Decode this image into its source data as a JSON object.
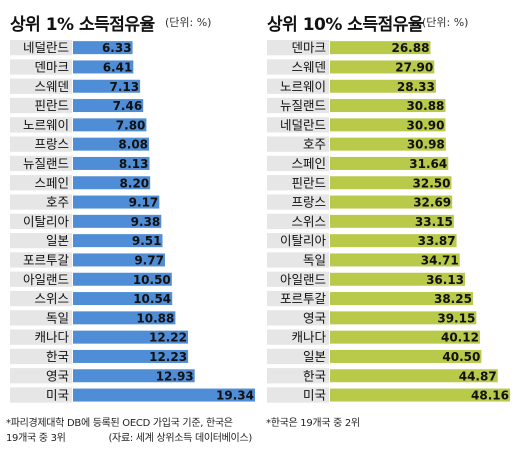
{
  "chart_data": [
    {
      "type": "bar",
      "orientation": "horizontal",
      "title": "상위 1% 소득점유율",
      "unit_label": "(단위: %)",
      "categories": [
        "네덜란드",
        "덴마크",
        "스웨덴",
        "핀란드",
        "노르웨이",
        "프랑스",
        "뉴질랜드",
        "스페인",
        "호주",
        "이탈리아",
        "일본",
        "포르투갈",
        "아일랜드",
        "스위스",
        "독일",
        "캐나다",
        "한국",
        "영국",
        "미국"
      ],
      "values": [
        6.33,
        6.41,
        7.13,
        7.46,
        7.8,
        8.08,
        8.13,
        8.2,
        9.17,
        9.38,
        9.51,
        9.77,
        10.5,
        10.54,
        10.88,
        12.22,
        12.23,
        12.93,
        19.34
      ],
      "value_labels": [
        "6.33",
        "6.41",
        "7.13",
        "7.46",
        "7.80",
        "8.08",
        "8.13",
        "8.20",
        "9.17",
        "9.38",
        "9.51",
        "9.77",
        "10.50",
        "10.54",
        "10.88",
        "12.22",
        "12.23",
        "12.93",
        "19.34"
      ],
      "bar_color": "#4f8ed6",
      "xlim": [
        0,
        19.34
      ]
    },
    {
      "type": "bar",
      "orientation": "horizontal",
      "title": "상위 10% 소득점유율",
      "unit_label": "(단위: %)",
      "categories": [
        "덴마크",
        "스웨덴",
        "노르웨이",
        "뉴질랜드",
        "네덜란드",
        "호주",
        "스페인",
        "핀란드",
        "프랑스",
        "스위스",
        "이탈리아",
        "독일",
        "아일랜드",
        "포르투갈",
        "영국",
        "캐나다",
        "일본",
        "한국",
        "미국"
      ],
      "values": [
        26.88,
        27.9,
        28.33,
        30.88,
        30.9,
        30.98,
        31.64,
        32.5,
        32.69,
        33.15,
        33.87,
        34.71,
        36.13,
        38.25,
        39.15,
        40.12,
        40.5,
        44.87,
        48.16
      ],
      "value_labels": [
        "26.88",
        "27.90",
        "28.33",
        "30.88",
        "30.90",
        "30.98",
        "31.64",
        "32.50",
        "32.69",
        "33.15",
        "33.87",
        "34.71",
        "36.13",
        "38.25",
        "39.15",
        "40.12",
        "40.50",
        "44.87",
        "48.16"
      ],
      "bar_color": "#b9c94a",
      "xlim": [
        0,
        48.16
      ]
    }
  ],
  "notes": {
    "left_line1": "*파리경제대학 DB에 등록된 OECD 가입국 기준,  한국은",
    "left_line2": "19개국 중 3위",
    "source": "(자료: 세계 상위소득 데이터베이스)",
    "right": "*한국은 19개국 중 2위"
  },
  "colors": {
    "label_box": "#e6e6e6",
    "label_text": "#111111",
    "value_text": "#111111"
  }
}
